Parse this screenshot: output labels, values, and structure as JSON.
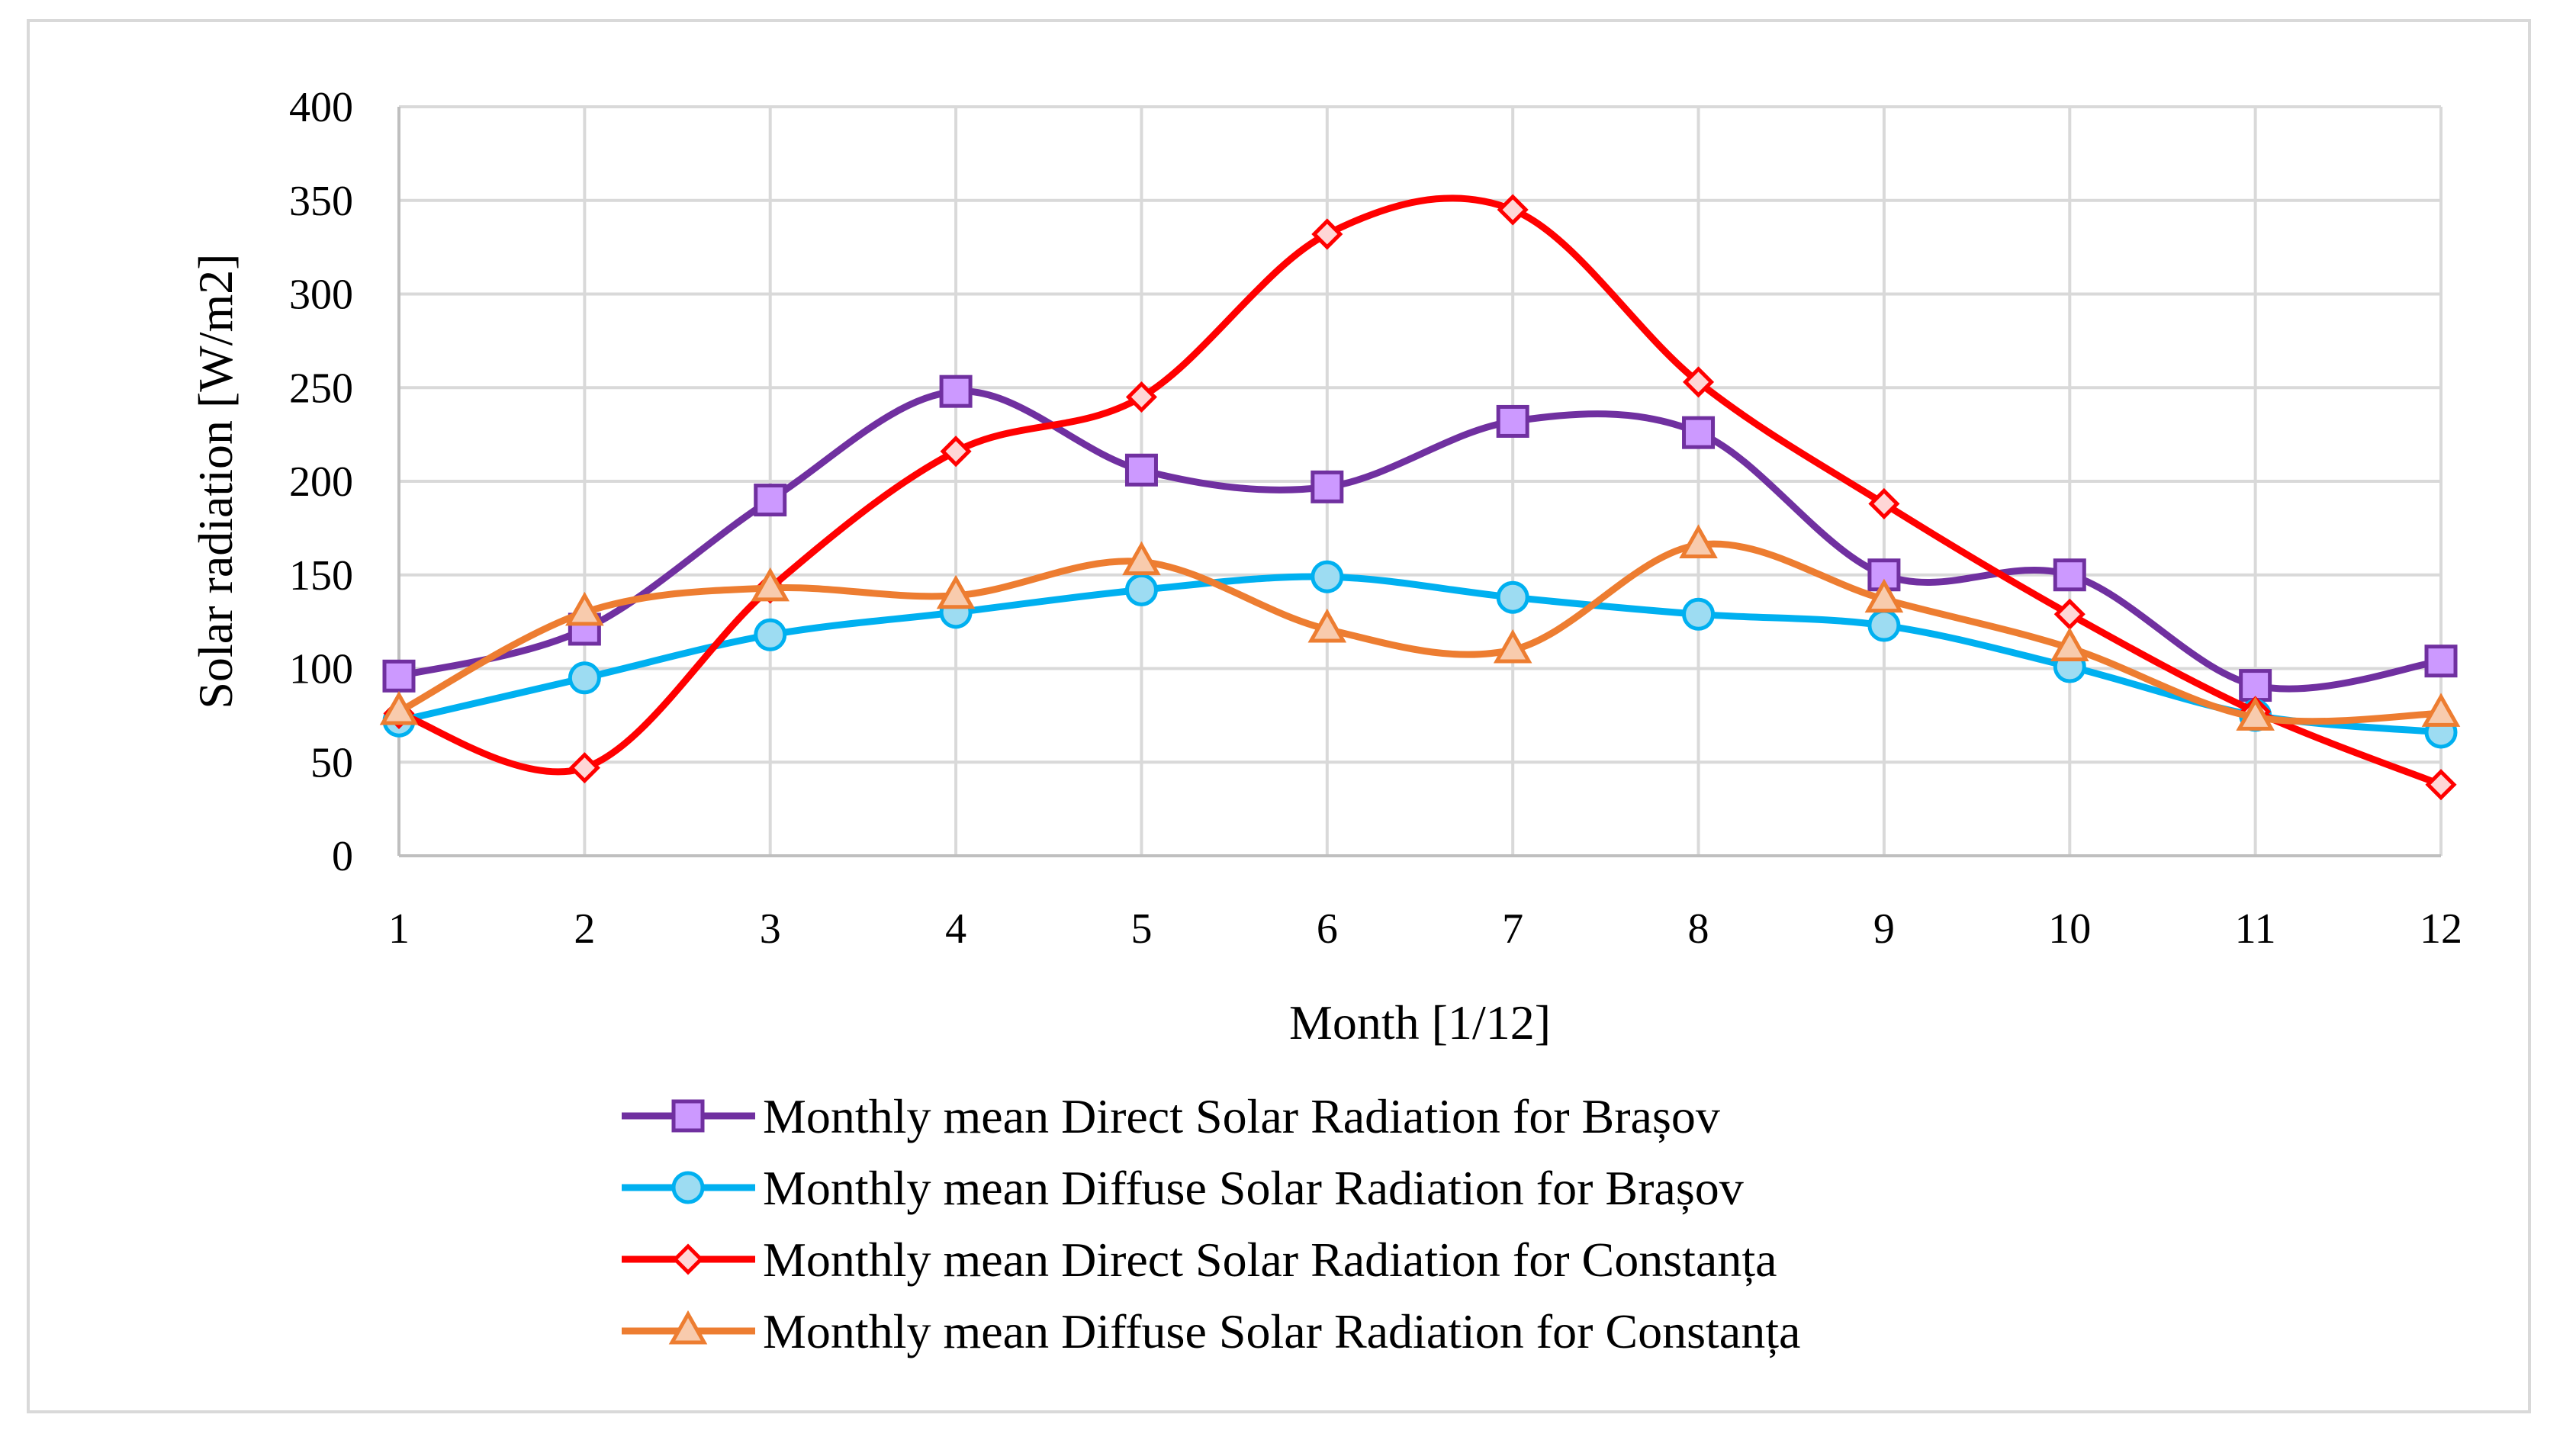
{
  "chart_data": {
    "type": "line",
    "title": "",
    "xlabel": "Month [1/12]",
    "ylabel": "Solar radiation [W/m2]",
    "x": [
      1,
      2,
      3,
      4,
      5,
      6,
      7,
      8,
      9,
      10,
      11,
      12
    ],
    "ylim": [
      0,
      400
    ],
    "yticks": [
      0,
      50,
      100,
      150,
      200,
      250,
      300,
      350,
      400
    ],
    "grid": true,
    "legend_position": "bottom",
    "smooth": true,
    "series": [
      {
        "name": "Monthly mean Direct Solar Radiation for Brașov",
        "color": "#7030a0",
        "marker_fill": "#cc99ff",
        "marker": "square",
        "values": [
          96,
          121,
          190,
          248,
          206,
          197,
          232,
          226,
          150,
          150,
          91,
          104
        ]
      },
      {
        "name": "Monthly mean Diffuse Solar Radiation for Brașov",
        "color": "#00b0f0",
        "marker_fill": "#9ddcf2",
        "marker": "circle",
        "values": [
          72,
          95,
          118,
          130,
          142,
          149,
          138,
          129,
          123,
          101,
          75,
          66
        ]
      },
      {
        "name": "Monthly mean Direct Solar Radiation for Constanța",
        "color": "#ff0000",
        "marker_fill": "#ffd6d6",
        "marker": "diamond",
        "values": [
          76,
          47,
          143,
          216,
          245,
          332,
          345,
          253,
          188,
          129,
          77,
          38
        ]
      },
      {
        "name": "Monthly mean Diffuse Solar Radiation for Constanța",
        "color": "#ed7d31",
        "marker_fill": "#f8cbad",
        "marker": "triangle",
        "values": [
          77,
          130,
          143,
          139,
          157,
          121,
          110,
          166,
          137,
          111,
          74,
          76
        ]
      }
    ]
  }
}
